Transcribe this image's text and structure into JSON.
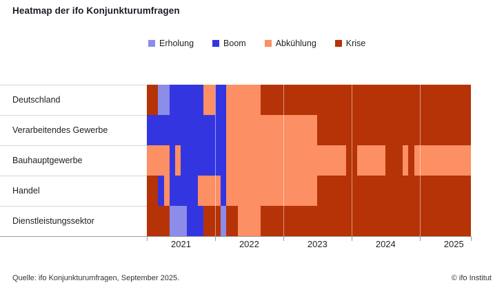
{
  "title": "Heatmap der ifo Konjunkturumfragen",
  "legend": {
    "items": [
      {
        "key": "Erholung",
        "label": "Erholung",
        "color": "#8b8de9"
      },
      {
        "key": "Boom",
        "label": "Boom",
        "color": "#3336e0"
      },
      {
        "key": "Abkühlung",
        "label": "Abkühlung",
        "color": "#fc8f63"
      },
      {
        "key": "Krise",
        "label": "Krise",
        "color": "#b53307"
      }
    ]
  },
  "chart_data": {
    "type": "heatmap",
    "title": "Heatmap der ifo Konjunkturumfragen",
    "x_start": "2021-01",
    "x_end": "2025-09",
    "months_total": 57,
    "states": [
      "Erholung",
      "Boom",
      "Abkühlung",
      "Krise"
    ],
    "year_labels": [
      "2021",
      "2022",
      "2023",
      "2024",
      "2025"
    ],
    "year_start_offsets": [
      0,
      12,
      24,
      36,
      48
    ],
    "tick_offsets": [
      0,
      12,
      24,
      36,
      48,
      57
    ],
    "legend_position": "top",
    "rows": [
      {
        "label": "Deutschland",
        "segments": [
          {
            "state": "Krise",
            "months": 2,
            "from": "2021-01"
          },
          {
            "state": "Erholung",
            "months": 2,
            "from": "2021-03"
          },
          {
            "state": "Boom",
            "months": 6,
            "from": "2021-05"
          },
          {
            "state": "Abkühlung",
            "months": 2,
            "from": "2021-11"
          },
          {
            "state": "Boom",
            "months": 2,
            "from": "2022-01"
          },
          {
            "state": "Abkühlung",
            "months": 6,
            "from": "2022-03"
          },
          {
            "state": "Krise",
            "months": 37,
            "from": "2022-09"
          }
        ]
      },
      {
        "label": "Verarbeitendes Gewerbe",
        "segments": [
          {
            "state": "Boom",
            "months": 14,
            "from": "2021-01"
          },
          {
            "state": "Abkühlung",
            "months": 16,
            "from": "2022-03"
          },
          {
            "state": "Krise",
            "months": 27,
            "from": "2023-07"
          }
        ]
      },
      {
        "label": "Bauhauptgewerbe",
        "segments": [
          {
            "state": "Abkühlung",
            "months": 4,
            "from": "2021-01"
          },
          {
            "state": "Boom",
            "months": 1,
            "from": "2021-05"
          },
          {
            "state": "Abkühlung",
            "months": 1,
            "from": "2021-06"
          },
          {
            "state": "Boom",
            "months": 8,
            "from": "2021-07"
          },
          {
            "state": "Abkühlung",
            "months": 21,
            "from": "2022-03"
          },
          {
            "state": "Krise",
            "months": 2,
            "from": "2023-12"
          },
          {
            "state": "Abkühlung",
            "months": 5,
            "from": "2024-02"
          },
          {
            "state": "Krise",
            "months": 3,
            "from": "2024-07"
          },
          {
            "state": "Abkühlung",
            "months": 1,
            "from": "2024-10"
          },
          {
            "state": "Krise",
            "months": 1,
            "from": "2024-11"
          },
          {
            "state": "Abkühlung",
            "months": 10,
            "from": "2024-12"
          }
        ]
      },
      {
        "label": "Handel",
        "segments": [
          {
            "state": "Krise",
            "months": 2,
            "from": "2021-01"
          },
          {
            "state": "Boom",
            "months": 1,
            "from": "2021-03"
          },
          {
            "state": "Abkühlung",
            "months": 1,
            "from": "2021-04"
          },
          {
            "state": "Boom",
            "months": 5,
            "from": "2021-05"
          },
          {
            "state": "Abkühlung",
            "months": 4,
            "from": "2021-10"
          },
          {
            "state": "Boom",
            "months": 1,
            "from": "2022-02"
          },
          {
            "state": "Abkühlung",
            "months": 16,
            "from": "2022-03"
          },
          {
            "state": "Krise",
            "months": 27,
            "from": "2023-07"
          }
        ]
      },
      {
        "label": "Dienstleistungssektor",
        "segments": [
          {
            "state": "Krise",
            "months": 4,
            "from": "2021-01"
          },
          {
            "state": "Erholung",
            "months": 3,
            "from": "2021-05"
          },
          {
            "state": "Boom",
            "months": 3,
            "from": "2021-08"
          },
          {
            "state": "Krise",
            "months": 3,
            "from": "2021-11"
          },
          {
            "state": "Erholung",
            "months": 1,
            "from": "2022-02"
          },
          {
            "state": "Krise",
            "months": 2,
            "from": "2022-03"
          },
          {
            "state": "Abkühlung",
            "months": 4,
            "from": "2022-05"
          },
          {
            "state": "Krise",
            "months": 37,
            "from": "2022-09"
          }
        ]
      }
    ]
  },
  "footer": {
    "source": "Quelle: ifo Konjunkturumfragen, September 2025.",
    "copyright": "© ifo Institut"
  }
}
